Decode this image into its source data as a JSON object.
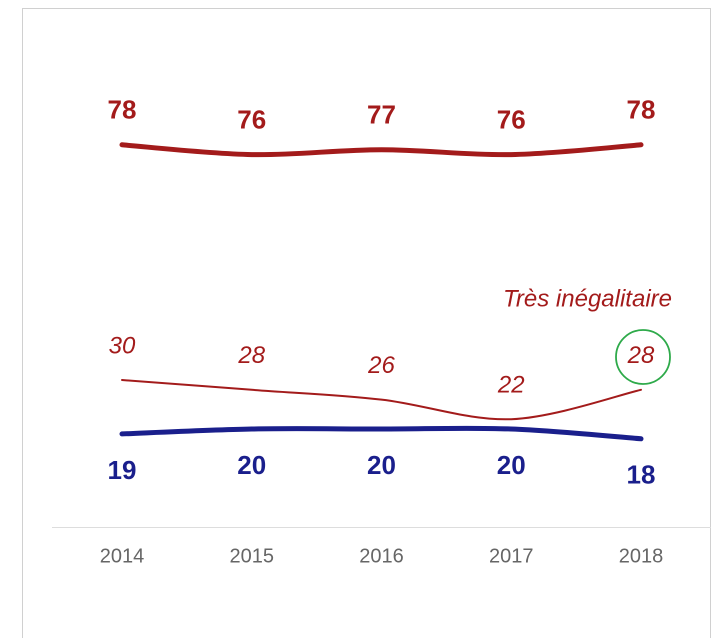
{
  "chart_data": {
    "type": "line",
    "categories": [
      "2014",
      "2015",
      "2016",
      "2017",
      "2018"
    ],
    "series": [
      {
        "color": "#a31b1b",
        "values": [
          78,
          76,
          77,
          76,
          78
        ]
      },
      {
        "name": "Très inégalitaire",
        "color": "#a31b1b",
        "values": [
          30,
          28,
          26,
          22,
          28
        ]
      },
      {
        "color": "#1a1f8c",
        "values": [
          19,
          20,
          20,
          20,
          18
        ]
      }
    ],
    "ylim": [
      0,
      100
    ]
  }
}
